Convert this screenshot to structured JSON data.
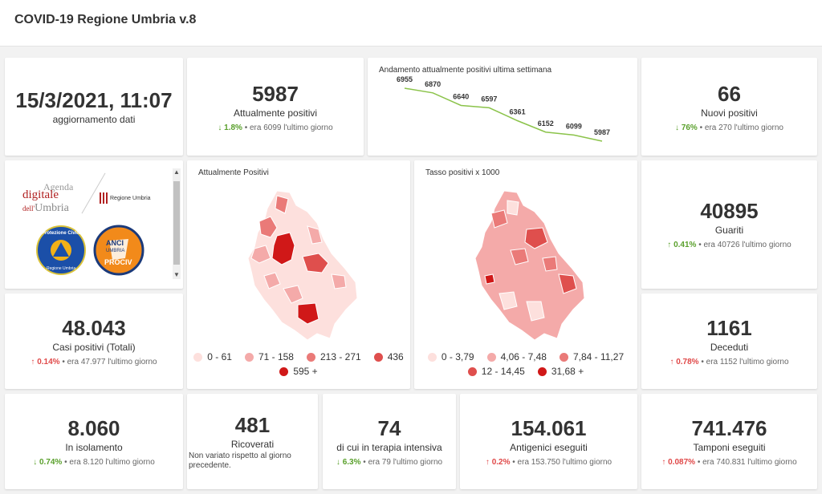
{
  "header": {
    "title": "COVID-19 Regione Umbria v.8"
  },
  "update": {
    "datetime": "15/3/2021, 11:07",
    "label": "aggiornamento dati"
  },
  "positivi": {
    "value": "5987",
    "label": "Attualmente positivi",
    "pct": "1.8%",
    "prev": "era 6099 l'ultimo giorno",
    "trend": "down"
  },
  "trend_chart": {
    "title": "Andamento attualmente positivi ultima settimana",
    "chart_data": {
      "type": "line",
      "values": [
        6955,
        6870,
        6640,
        6597,
        6361,
        6152,
        6099,
        5987
      ],
      "labels": [
        "6955",
        "6870",
        "6640",
        "6597",
        "6361",
        "6152",
        "6099",
        "5987"
      ],
      "color": "#8bc34a"
    }
  },
  "nuovi": {
    "value": "66",
    "label": "Nuovi positivi",
    "pct": "76%",
    "prev": "era 270 l'ultimo giorno",
    "trend": "down"
  },
  "logos": {
    "agenda_line1": "Agenda",
    "agenda_line2": "digitale",
    "agenda_line3_a": "dell'",
    "agenda_line3_b": "Umbria",
    "regione": "Regione Umbria",
    "protezione": "Protezione Civile",
    "protezione_sub": "Regione Umbria",
    "anci": "ANCI",
    "anci_sub": "UMBRIA",
    "prociv": "PROCIV"
  },
  "map1": {
    "title": "Attualmente Positivi",
    "legend": [
      {
        "label": "0 - 61",
        "color": "#fde0dd"
      },
      {
        "label": "71 - 158",
        "color": "#f4aaa9"
      },
      {
        "label": "213 - 271",
        "color": "#ea7a78"
      },
      {
        "label": "436",
        "color": "#df4f4d"
      },
      {
        "label": "595 +",
        "color": "#d01818"
      }
    ]
  },
  "map2": {
    "title": "Tasso positivi x 1000",
    "legend": [
      {
        "label": "0 - 3,79",
        "color": "#fde0dd"
      },
      {
        "label": "4,06 - 7,48",
        "color": "#f4aaa9"
      },
      {
        "label": "7,84 - 11,27",
        "color": "#ea7a78"
      },
      {
        "label": "12 - 14,45",
        "color": "#df4f4d"
      },
      {
        "label": "31,68 +",
        "color": "#d01818"
      }
    ]
  },
  "guariti": {
    "value": "40895",
    "label": "Guariti",
    "pct": "0.41%",
    "prev": "era 40726 l'ultimo giorno",
    "trend": "up"
  },
  "casi": {
    "value": "48.043",
    "label": "Casi positivi (Totali)",
    "pct": "0.14%",
    "prev": "era 47.977 l'ultimo giorno",
    "trend": "up"
  },
  "deceduti": {
    "value": "1161",
    "label": "Deceduti",
    "pct": "0.78%",
    "prev": "era 1152 l'ultimo giorno",
    "trend": "up"
  },
  "isolamento": {
    "value": "8.060",
    "label": "In isolamento",
    "pct": "0.74%",
    "prev": "era 8.120 l'ultimo giorno",
    "trend": "down"
  },
  "ricoverati": {
    "value": "481",
    "label": "Ricoverati",
    "note": "Non variato rispetto al giorno precedente."
  },
  "terapia": {
    "value": "74",
    "label": "di cui in terapia intensiva",
    "pct": "6.3%",
    "prev": "era 79 l'ultimo giorno",
    "trend": "down"
  },
  "antigenici": {
    "value": "154.061",
    "label": "Antigenici eseguiti",
    "pct": "0.2%",
    "prev": "era 153.750 l'ultimo giorno",
    "trend": "up"
  },
  "tamponi": {
    "value": "741.476",
    "label": "Tamponi eseguiti",
    "pct": "0.087%",
    "prev": "era 740.831 l'ultimo giorno",
    "trend": "up"
  },
  "icons": {
    "down": "arrow-down-icon",
    "up": "arrow-up-icon"
  }
}
